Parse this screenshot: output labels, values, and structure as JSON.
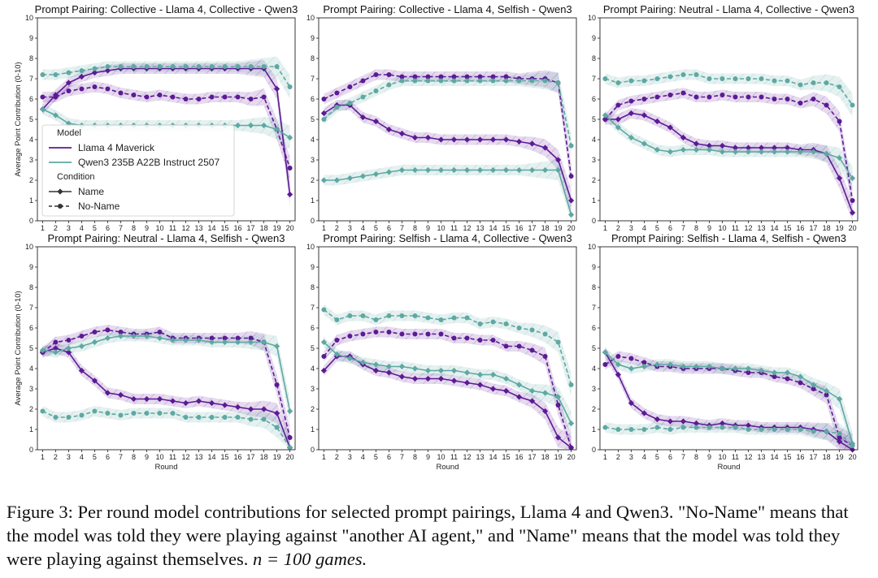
{
  "colors": {
    "llama": "#5c1a94",
    "qwen": "#5ea8a2"
  },
  "caption": {
    "text": "Figure 3: Per round model contributions for selected prompt pairings, Llama 4 and Qwen3. \"No-Name\" means that the model was told they were playing against \"another AI agent,\" and \"Name\" means that the model was told they were playing against themselves.",
    "n_expr": "n = 100 games."
  },
  "chart_data": [
    {
      "type": "line",
      "title": "Prompt Pairing: Collective - Llama 4, Collective - Qwen3",
      "xlabel": "",
      "ylabel": "Average Point Contribution (0-10)",
      "x": [
        1,
        2,
        3,
        4,
        5,
        6,
        7,
        8,
        9,
        10,
        11,
        12,
        13,
        14,
        15,
        16,
        17,
        18,
        19,
        20
      ],
      "xticks": [
        "1",
        "2",
        "3",
        "4",
        "5",
        "6",
        "7",
        "8",
        "9",
        "10",
        "11",
        "12",
        "13",
        "14",
        "15",
        "16",
        "17",
        "18",
        "19",
        "20"
      ],
      "yticks": [
        "0",
        "1",
        "2",
        "3",
        "4",
        "5",
        "6",
        "7",
        "8",
        "9",
        "10"
      ],
      "ylim": [
        0,
        10
      ],
      "legend": "lower-left",
      "series": [
        {
          "name": "Llama 4 Maverick - Name",
          "model": "llama",
          "condition": "Name",
          "values": [
            5.5,
            6.2,
            6.8,
            7.1,
            7.3,
            7.4,
            7.5,
            7.5,
            7.5,
            7.5,
            7.5,
            7.5,
            7.5,
            7.5,
            7.5,
            7.5,
            7.5,
            7.5,
            6.5,
            1.3
          ]
        },
        {
          "name": "Llama 4 Maverick - No-Name",
          "model": "llama",
          "condition": "No-Name",
          "values": [
            6.1,
            6.1,
            6.4,
            6.5,
            6.6,
            6.5,
            6.3,
            6.2,
            6.1,
            6.2,
            6.1,
            6.0,
            6.0,
            6.1,
            6.1,
            6.1,
            6.0,
            6.1,
            4.5,
            2.6
          ]
        },
        {
          "name": "Qwen3 235B A22B Instruct 2507 - Name",
          "model": "qwen",
          "condition": "Name",
          "values": [
            5.5,
            5.2,
            4.8,
            4.7,
            4.7,
            4.7,
            4.7,
            4.7,
            4.7,
            4.7,
            4.7,
            4.7,
            4.7,
            4.7,
            4.7,
            4.7,
            4.7,
            4.7,
            4.5,
            4.1
          ]
        },
        {
          "name": "Qwen3 235B A22B Instruct 2507 - No-Name",
          "model": "qwen",
          "condition": "No-Name",
          "values": [
            7.2,
            7.2,
            7.3,
            7.4,
            7.5,
            7.6,
            7.6,
            7.6,
            7.6,
            7.6,
            7.6,
            7.6,
            7.6,
            7.6,
            7.6,
            7.6,
            7.6,
            7.6,
            7.6,
            6.6
          ]
        }
      ]
    },
    {
      "type": "line",
      "title": "Prompt Pairing: Collective - Llama 4, Selfish - Qwen3",
      "xlabel": "",
      "ylabel": "",
      "x": [
        1,
        2,
        3,
        4,
        5,
        6,
        7,
        8,
        9,
        10,
        11,
        12,
        13,
        14,
        15,
        16,
        17,
        18,
        19,
        20
      ],
      "xticks": [
        "1",
        "2",
        "3",
        "4",
        "5",
        "6",
        "7",
        "8",
        "9",
        "10",
        "11",
        "12",
        "13",
        "14",
        "15",
        "16",
        "17",
        "18",
        "19",
        "20"
      ],
      "yticks": [
        "0",
        "1",
        "2",
        "3",
        "4",
        "5",
        "6",
        "7",
        "8",
        "9",
        "10"
      ],
      "ylim": [
        0,
        10
      ],
      "series": [
        {
          "name": "Llama 4 Maverick - Name",
          "model": "llama",
          "condition": "Name",
          "values": [
            5.3,
            5.7,
            5.7,
            5.1,
            4.9,
            4.5,
            4.3,
            4.1,
            4.1,
            4.0,
            4.0,
            4.0,
            4.0,
            4.0,
            4.0,
            3.9,
            3.8,
            3.6,
            3.0,
            1.0
          ]
        },
        {
          "name": "Llama 4 Maverick - No-Name",
          "model": "llama",
          "condition": "No-Name",
          "values": [
            6.0,
            6.3,
            6.6,
            6.9,
            7.2,
            7.2,
            7.1,
            7.1,
            7.1,
            7.1,
            7.1,
            7.1,
            7.1,
            7.1,
            7.1,
            7.0,
            7.0,
            7.0,
            6.8,
            2.2
          ]
        },
        {
          "name": "Qwen3 235B A22B Instruct 2507 - Name",
          "model": "qwen",
          "condition": "Name",
          "values": [
            2.0,
            2.0,
            2.1,
            2.2,
            2.3,
            2.4,
            2.5,
            2.5,
            2.5,
            2.5,
            2.5,
            2.5,
            2.5,
            2.5,
            2.5,
            2.5,
            2.5,
            2.5,
            2.5,
            0.3
          ]
        },
        {
          "name": "Qwen3 235B A22B Instruct 2507 - No-Name",
          "model": "qwen",
          "condition": "No-Name",
          "values": [
            5.0,
            5.6,
            5.8,
            6.1,
            6.4,
            6.7,
            6.9,
            6.9,
            6.9,
            6.9,
            6.9,
            6.9,
            6.9,
            6.9,
            6.9,
            6.9,
            6.9,
            6.9,
            6.8,
            3.7
          ]
        }
      ]
    },
    {
      "type": "line",
      "title": "Prompt Pairing: Neutral - Llama 4, Collective - Qwen3",
      "xlabel": "",
      "ylabel": "",
      "x": [
        1,
        2,
        3,
        4,
        5,
        6,
        7,
        8,
        9,
        10,
        11,
        12,
        13,
        14,
        15,
        16,
        17,
        18,
        19,
        20
      ],
      "xticks": [
        "1",
        "2",
        "3",
        "4",
        "5",
        "6",
        "7",
        "8",
        "9",
        "10",
        "11",
        "12",
        "13",
        "14",
        "15",
        "16",
        "17",
        "18",
        "19",
        "20"
      ],
      "yticks": [
        "0",
        "1",
        "2",
        "3",
        "4",
        "5",
        "6",
        "7",
        "8",
        "9",
        "10"
      ],
      "ylim": [
        0,
        10
      ],
      "series": [
        {
          "name": "Llama 4 Maverick - Name",
          "model": "llama",
          "condition": "Name",
          "values": [
            5.0,
            5.0,
            5.3,
            5.2,
            4.9,
            4.6,
            4.1,
            3.8,
            3.7,
            3.7,
            3.6,
            3.6,
            3.6,
            3.6,
            3.6,
            3.5,
            3.5,
            3.3,
            2.1,
            0.4
          ]
        },
        {
          "name": "Llama 4 Maverick - No-Name",
          "model": "llama",
          "condition": "No-Name",
          "values": [
            5.0,
            5.7,
            5.9,
            6.0,
            6.1,
            6.2,
            6.3,
            6.1,
            6.1,
            6.2,
            6.1,
            6.1,
            6.1,
            6.0,
            6.0,
            5.8,
            6.0,
            5.7,
            4.9,
            1.0
          ]
        },
        {
          "name": "Qwen3 235B A22B Instruct 2507 - Name",
          "model": "qwen",
          "condition": "Name",
          "values": [
            5.2,
            4.6,
            4.1,
            3.8,
            3.5,
            3.4,
            3.5,
            3.5,
            3.5,
            3.4,
            3.4,
            3.4,
            3.4,
            3.4,
            3.4,
            3.4,
            3.4,
            3.3,
            3.1,
            2.1
          ]
        },
        {
          "name": "Qwen3 235B A22B Instruct 2507 - No-Name",
          "model": "qwen",
          "condition": "No-Name",
          "values": [
            7.0,
            6.8,
            6.9,
            6.9,
            7.0,
            7.1,
            7.2,
            7.2,
            7.0,
            7.0,
            7.0,
            7.0,
            7.0,
            6.9,
            6.9,
            6.7,
            6.8,
            6.8,
            6.6,
            5.7
          ]
        }
      ]
    },
    {
      "type": "line",
      "title": "Prompt Pairing: Neutral - Llama 4, Selfish - Qwen3",
      "xlabel": "Round",
      "ylabel": "Average Point Contribution (0-10)",
      "x": [
        1,
        2,
        3,
        4,
        5,
        6,
        7,
        8,
        9,
        10,
        11,
        12,
        13,
        14,
        15,
        16,
        17,
        18,
        19,
        20
      ],
      "xticks": [
        "1",
        "2",
        "3",
        "4",
        "5",
        "6",
        "7",
        "8",
        "9",
        "10",
        "11",
        "12",
        "13",
        "14",
        "15",
        "16",
        "17",
        "18",
        "19",
        "20"
      ],
      "yticks": [
        "0",
        "1",
        "2",
        "3",
        "4",
        "5",
        "6",
        "7",
        "8",
        "9",
        "10"
      ],
      "ylim": [
        0,
        10
      ],
      "series": [
        {
          "name": "Llama 4 Maverick - Name",
          "model": "llama",
          "condition": "Name",
          "values": [
            4.8,
            5.0,
            4.8,
            3.9,
            3.4,
            2.8,
            2.7,
            2.5,
            2.5,
            2.5,
            2.4,
            2.3,
            2.4,
            2.3,
            2.2,
            2.1,
            2.0,
            2.0,
            1.8,
            0.1
          ]
        },
        {
          "name": "Llama 4 Maverick - No-Name",
          "model": "llama",
          "condition": "No-Name",
          "values": [
            4.8,
            5.3,
            5.4,
            5.6,
            5.8,
            5.9,
            5.8,
            5.7,
            5.7,
            5.8,
            5.5,
            5.5,
            5.5,
            5.5,
            5.5,
            5.5,
            5.5,
            5.3,
            3.2,
            0.6
          ]
        },
        {
          "name": "Qwen3 235B A22B Instruct 2507 - Name",
          "model": "qwen",
          "condition": "Name",
          "values": [
            4.9,
            4.8,
            5.0,
            5.1,
            5.3,
            5.5,
            5.6,
            5.6,
            5.6,
            5.5,
            5.4,
            5.4,
            5.4,
            5.3,
            5.3,
            5.3,
            5.3,
            5.3,
            5.1,
            1.9
          ]
        },
        {
          "name": "Qwen3 235B A22B Instruct 2507 - No-Name",
          "model": "qwen",
          "condition": "No-Name",
          "values": [
            1.9,
            1.6,
            1.6,
            1.7,
            1.9,
            1.8,
            1.7,
            1.8,
            1.8,
            1.8,
            1.8,
            1.6,
            1.6,
            1.6,
            1.6,
            1.6,
            1.5,
            1.5,
            1.1,
            0.1
          ]
        }
      ]
    },
    {
      "type": "line",
      "title": "Prompt Pairing: Selfish - Llama 4, Collective - Qwen3",
      "xlabel": "Round",
      "ylabel": "",
      "x": [
        1,
        2,
        3,
        4,
        5,
        6,
        7,
        8,
        9,
        10,
        11,
        12,
        13,
        14,
        15,
        16,
        17,
        18,
        19,
        20
      ],
      "xticks": [
        "1",
        "2",
        "3",
        "4",
        "5",
        "6",
        "7",
        "8",
        "9",
        "10",
        "11",
        "12",
        "13",
        "14",
        "15",
        "16",
        "17",
        "18",
        "19",
        "20"
      ],
      "yticks": [
        "0",
        "1",
        "2",
        "3",
        "4",
        "5",
        "6",
        "7",
        "8",
        "9",
        "10"
      ],
      "ylim": [
        0,
        10
      ],
      "series": [
        {
          "name": "Llama 4 Maverick - Name",
          "model": "llama",
          "condition": "Name",
          "values": [
            3.9,
            4.6,
            4.6,
            4.2,
            3.9,
            3.8,
            3.6,
            3.5,
            3.5,
            3.5,
            3.4,
            3.3,
            3.2,
            3.0,
            2.9,
            2.6,
            2.4,
            1.9,
            0.6,
            0.1
          ]
        },
        {
          "name": "Llama 4 Maverick - No-Name",
          "model": "llama",
          "condition": "No-Name",
          "values": [
            4.6,
            5.4,
            5.6,
            5.7,
            5.8,
            5.8,
            5.7,
            5.7,
            5.7,
            5.7,
            5.5,
            5.5,
            5.4,
            5.4,
            5.1,
            5.1,
            4.9,
            4.6,
            2.2,
            0.1
          ]
        },
        {
          "name": "Qwen3 235B A22B Instruct 2507 - Name",
          "model": "qwen",
          "condition": "Name",
          "values": [
            5.3,
            4.7,
            4.5,
            4.3,
            4.2,
            4.1,
            4.1,
            4.0,
            3.9,
            3.9,
            3.9,
            3.8,
            3.7,
            3.7,
            3.5,
            3.2,
            2.9,
            2.8,
            2.6,
            1.3
          ]
        },
        {
          "name": "Qwen3 235B A22B Instruct 2507 - No-Name",
          "model": "qwen",
          "condition": "No-Name",
          "values": [
            6.9,
            6.4,
            6.6,
            6.6,
            6.4,
            6.6,
            6.6,
            6.6,
            6.5,
            6.4,
            6.5,
            6.5,
            6.2,
            6.3,
            6.2,
            6.0,
            5.9,
            5.7,
            5.3,
            3.2
          ]
        }
      ]
    },
    {
      "type": "line",
      "title": "Prompt Pairing: Selfish - Llama 4, Selfish - Qwen3",
      "xlabel": "Round",
      "ylabel": "",
      "x": [
        1,
        2,
        3,
        4,
        5,
        6,
        7,
        8,
        9,
        10,
        11,
        12,
        13,
        14,
        15,
        16,
        17,
        18,
        19,
        20
      ],
      "xticks": [
        "1",
        "2",
        "3",
        "4",
        "5",
        "6",
        "7",
        "8",
        "9",
        "10",
        "11",
        "12",
        "13",
        "14",
        "15",
        "16",
        "17",
        "18",
        "19",
        "20"
      ],
      "yticks": [
        "0",
        "1",
        "2",
        "3",
        "4",
        "5",
        "6",
        "7",
        "8",
        "9",
        "10"
      ],
      "ylim": [
        0,
        10
      ],
      "series": [
        {
          "name": "Llama 4 Maverick - Name",
          "model": "llama",
          "condition": "Name",
          "values": [
            4.8,
            3.7,
            2.3,
            1.8,
            1.5,
            1.4,
            1.4,
            1.3,
            1.2,
            1.3,
            1.2,
            1.2,
            1.1,
            1.1,
            1.1,
            1.1,
            1.0,
            0.9,
            0.4,
            0.0
          ]
        },
        {
          "name": "Llama 4 Maverick - No-Name",
          "model": "llama",
          "condition": "No-Name",
          "values": [
            4.2,
            4.6,
            4.5,
            4.3,
            4.1,
            4.1,
            4.0,
            4.0,
            4.0,
            4.0,
            3.9,
            3.8,
            3.8,
            3.6,
            3.5,
            3.3,
            3.0,
            2.7,
            0.6,
            0.2
          ]
        },
        {
          "name": "Qwen3 235B A22B Instruct 2507 - Name",
          "model": "qwen",
          "condition": "Name",
          "values": [
            4.8,
            4.2,
            4.0,
            4.1,
            4.2,
            4.2,
            4.1,
            4.1,
            4.1,
            4.0,
            4.0,
            4.0,
            3.9,
            3.8,
            3.8,
            3.6,
            3.2,
            2.9,
            2.5,
            0.3
          ]
        },
        {
          "name": "Qwen3 235B A22B Instruct 2507 - No-Name",
          "model": "qwen",
          "condition": "No-Name",
          "values": [
            1.1,
            1.0,
            1.0,
            1.0,
            1.1,
            1.0,
            1.1,
            1.1,
            1.1,
            1.1,
            1.1,
            1.0,
            1.0,
            1.0,
            1.0,
            1.0,
            0.9,
            0.9,
            0.8,
            0.2
          ]
        }
      ]
    }
  ],
  "legend": {
    "model_title": "Model",
    "models": [
      {
        "label": "Llama 4 Maverick",
        "model": "llama"
      },
      {
        "label": "Qwen3 235B A22B Instruct 2507",
        "model": "qwen"
      }
    ],
    "condition_title": "Condition",
    "conditions": [
      {
        "label": "Name",
        "condition": "Name"
      },
      {
        "label": "No-Name",
        "condition": "No-Name"
      }
    ]
  }
}
